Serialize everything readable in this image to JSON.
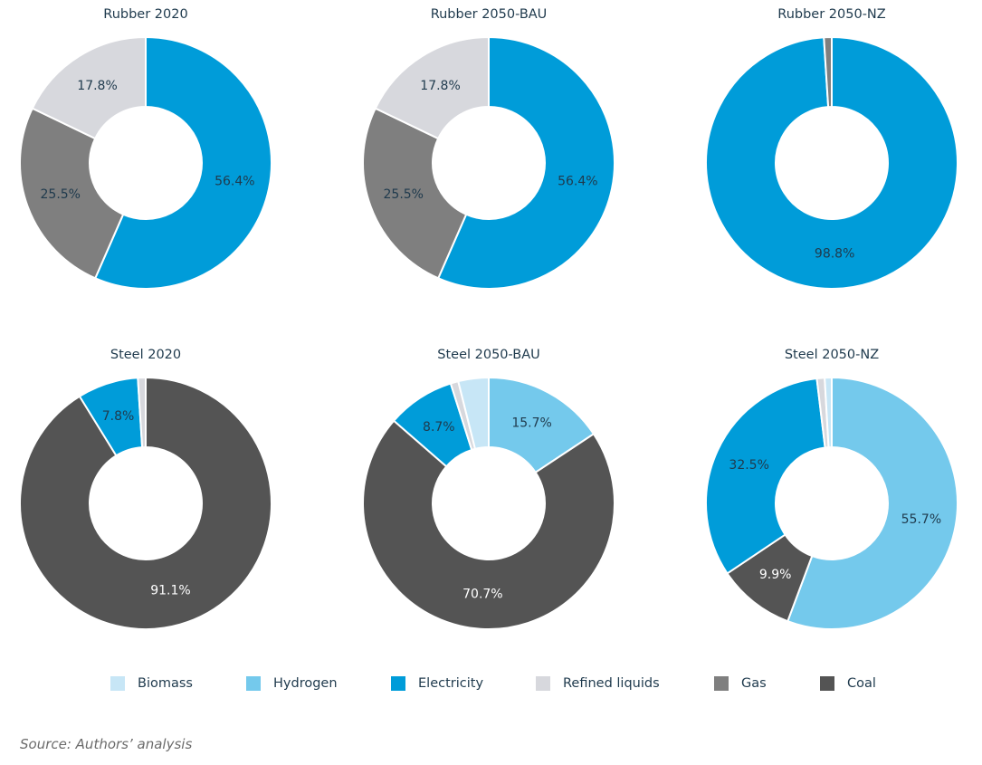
{
  "colors": {
    "Biomass": "#c7e6f6",
    "Hydrogen": "#74c9ec",
    "Electricity": "#009cd9",
    "Refined liquids": "#d7d8dd",
    "Gas": "#7f7f7f",
    "Coal": "#545454"
  },
  "chart_data": [
    {
      "type": "pie",
      "title": "Rubber 2020",
      "slices": [
        {
          "name": "Electricity",
          "value": 56.4,
          "label": "56.4%"
        },
        {
          "name": "Gas",
          "value": 25.5,
          "label": "25.5%"
        },
        {
          "name": "Refined liquids",
          "value": 17.8,
          "label": "17.8%"
        }
      ]
    },
    {
      "type": "pie",
      "title": "Rubber 2050-BAU",
      "slices": [
        {
          "name": "Electricity",
          "value": 56.4,
          "label": "56.4%"
        },
        {
          "name": "Gas",
          "value": 25.5,
          "label": "25.5%"
        },
        {
          "name": "Refined liquids",
          "value": 17.8,
          "label": "17.8%"
        }
      ]
    },
    {
      "type": "pie",
      "title": "Rubber 2050-NZ",
      "slices": [
        {
          "name": "Electricity",
          "value": 98.8,
          "label": "98.8%"
        },
        {
          "name": "Gas",
          "value": 1.0,
          "label": ""
        }
      ]
    },
    {
      "type": "pie",
      "title": "Steel 2020",
      "slices": [
        {
          "name": "Coal",
          "value": 91.1,
          "label": "91.1%"
        },
        {
          "name": "Electricity",
          "value": 7.8,
          "label": "7.8%"
        },
        {
          "name": "Refined liquids",
          "value": 1.0,
          "label": ""
        }
      ]
    },
    {
      "type": "pie",
      "title": "Steel 2050-BAU",
      "slices": [
        {
          "name": "Hydrogen",
          "value": 15.7,
          "label": "15.7%"
        },
        {
          "name": "Coal",
          "value": 70.7,
          "label": "70.7%"
        },
        {
          "name": "Electricity",
          "value": 8.7,
          "label": "8.7%"
        },
        {
          "name": "Refined liquids",
          "value": 1.0,
          "label": ""
        },
        {
          "name": "Biomass",
          "value": 3.9,
          "label": ""
        }
      ]
    },
    {
      "type": "pie",
      "title": "Steel 2050-NZ",
      "slices": [
        {
          "name": "Hydrogen",
          "value": 55.7,
          "label": "55.7%"
        },
        {
          "name": "Coal",
          "value": 9.9,
          "label": "9.9%"
        },
        {
          "name": "Electricity",
          "value": 32.5,
          "label": "32.5%"
        },
        {
          "name": "Refined liquids",
          "value": 1.0,
          "label": ""
        },
        {
          "name": "Biomass",
          "value": 0.9,
          "label": ""
        }
      ]
    }
  ],
  "legend": {
    "items": [
      "Biomass",
      "Hydrogen",
      "Electricity",
      "Refined liquids",
      "Gas",
      "Coal"
    ]
  },
  "source": "Source: Authors’ analysis"
}
